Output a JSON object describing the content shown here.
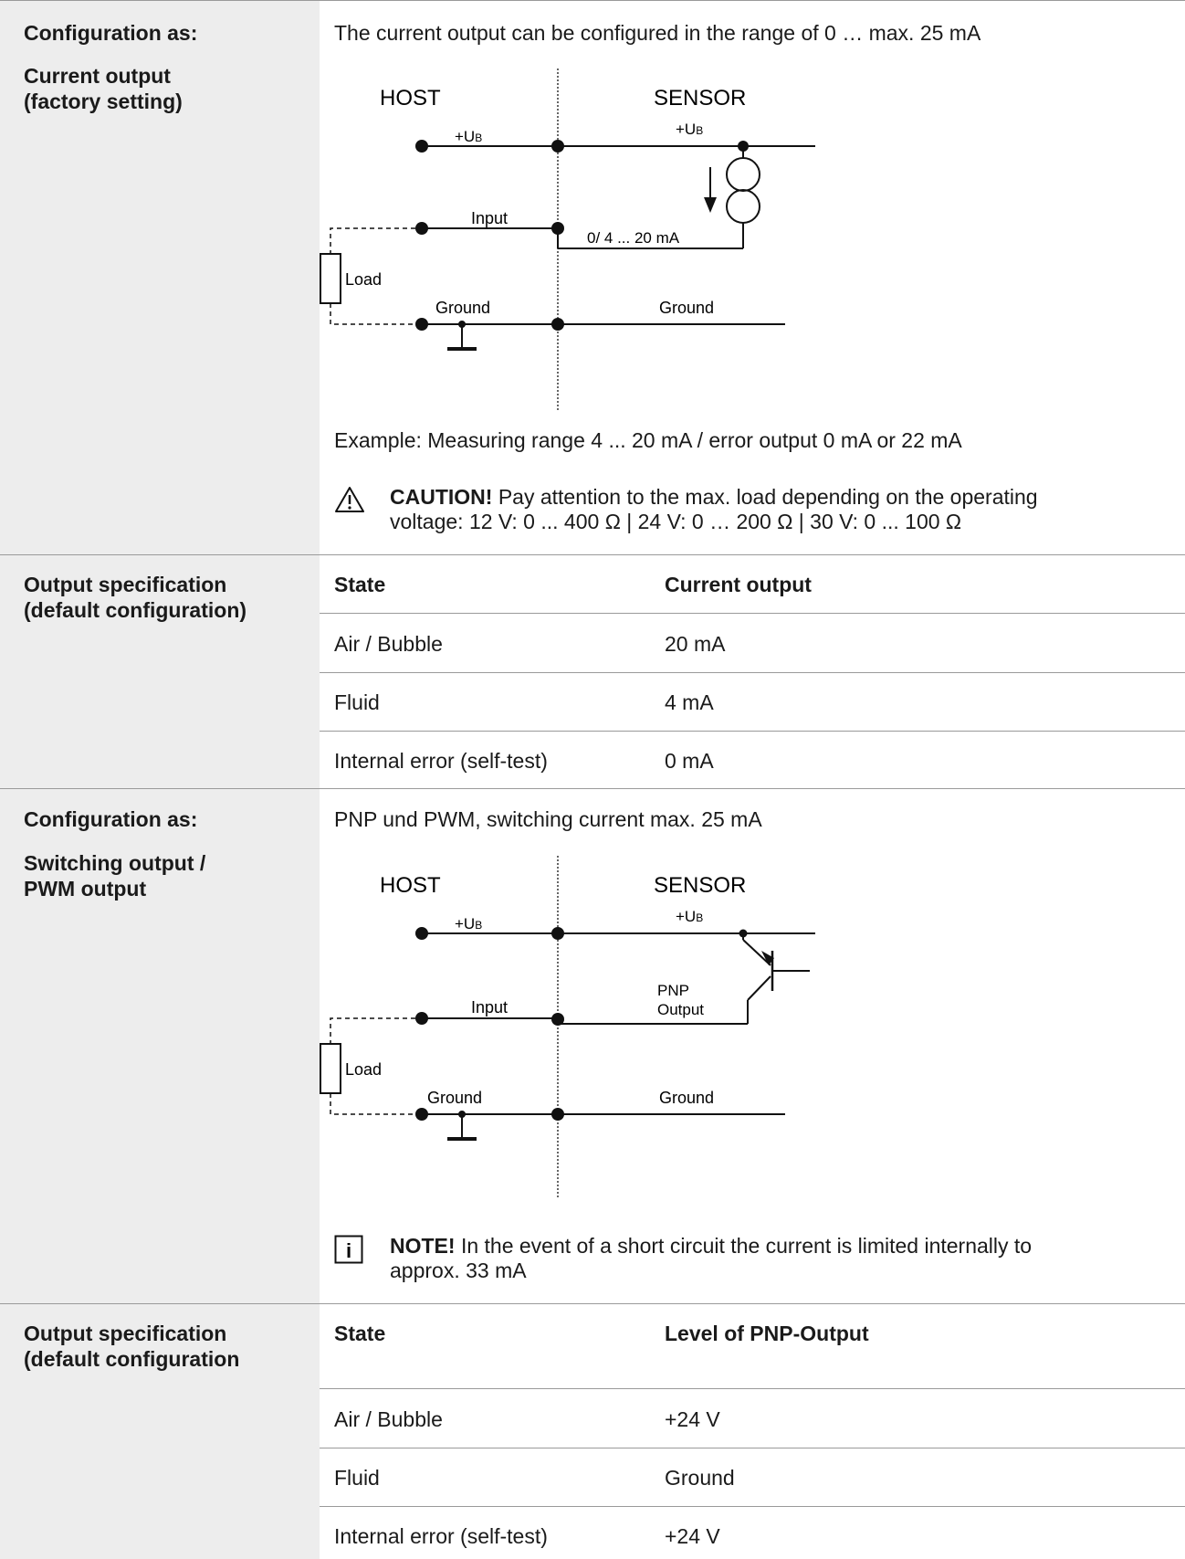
{
  "section1": {
    "label_a": "Configuration as:",
    "label_b1": "Current output",
    "label_b2": "(factory setting)",
    "intro": "The current output can be configured in the range of 0 … max. 25 mA",
    "diagram": {
      "host": "HOST",
      "sensor": "SENSOR",
      "ub_host": "+U",
      "ub_host_sub": "B",
      "ub_sensor": "+U",
      "ub_sensor_sub": "B",
      "input": "Input",
      "current_label": "0/ 4 ... 20 mA",
      "load": "Load",
      "ground_host": "Ground",
      "ground_sensor": "Ground"
    },
    "example": "Example: Measuring range 4 ... 20 mA / error output 0 mA or 22 mA",
    "caution_bold": "CAUTION!",
    "caution_line1": " Pay attention to the max. load depending on the operating",
    "caution_line2": "voltage: 12 V: 0 ... 400 Ω | 24 V: 0 … 200 Ω | 30 V: 0 ... 100 Ω"
  },
  "spec1": {
    "label1": "Output specification",
    "label2": "(default configuration)",
    "headers": [
      "State",
      "Current output"
    ],
    "rows": [
      [
        "Air / Bubble",
        "20 mA"
      ],
      [
        "Fluid",
        "4 mA"
      ],
      [
        "Internal error (self-test)",
        "0 mA"
      ]
    ]
  },
  "section2": {
    "label_a": "Configuration as:",
    "label_b1": "Switching output /",
    "label_b2": "PWM output",
    "intro": "PNP und PWM, switching current max. 25 mA",
    "diagram": {
      "host": "HOST",
      "sensor": "SENSOR",
      "ub_host": "+U",
      "ub_host_sub": "B",
      "ub_sensor": "+U",
      "ub_sensor_sub": "B",
      "input": "Input",
      "pnp1": "PNP",
      "pnp2": "Output",
      "load": "Load",
      "ground_host": "Ground",
      "ground_sensor": "Ground"
    },
    "note_bold": "NOTE!",
    "note_line1": " In the event of a short circuit the current is limited internally to",
    "note_line2": "approx. 33 mA"
  },
  "spec2": {
    "label1": "Output specification",
    "label2": "(default configuration",
    "headers": [
      "State",
      "Level of PNP-Output"
    ],
    "rows": [
      [
        "Air / Bubble",
        "+24 V"
      ],
      [
        "Fluid",
        "Ground"
      ],
      [
        "Internal error (self-test)",
        "+24 V"
      ]
    ]
  }
}
